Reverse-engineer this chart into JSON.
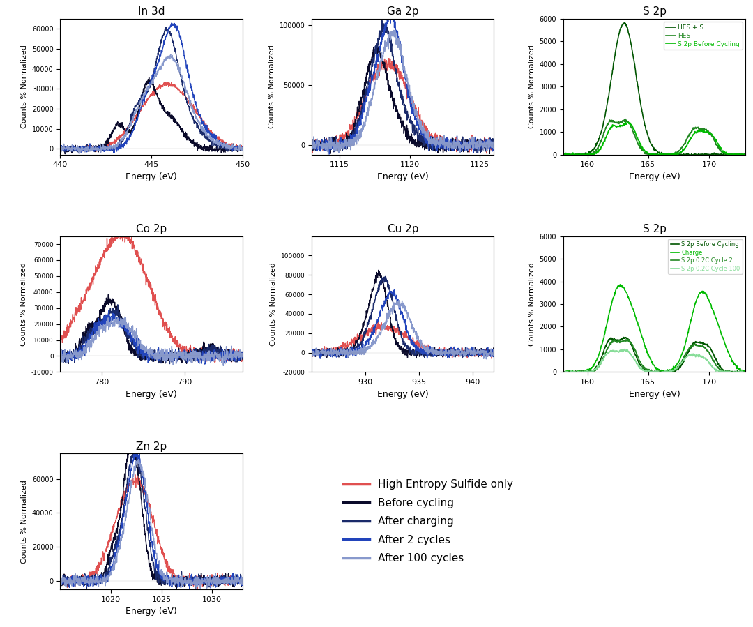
{
  "panels": {
    "In3d": {
      "title": "In 3d",
      "xlabel": "Energy (eV)",
      "ylabel": "Counts % Normalized",
      "xlim": [
        440,
        450
      ],
      "ylim": [
        -3000,
        65000
      ],
      "yticks": [
        0,
        10000,
        20000,
        30000,
        40000,
        50000,
        60000
      ]
    },
    "Ga2p": {
      "title": "Ga 2p",
      "xlabel": "Energy (eV)",
      "ylabel": "Counts % Normalized",
      "xlim": [
        1113,
        1126
      ],
      "ylim": [
        -8000,
        105000
      ],
      "yticks": [
        0,
        50000,
        100000
      ]
    },
    "S2p_top": {
      "title": "S 2p",
      "xlabel": "Energy (eV)",
      "ylabel": "Counts % Normalized",
      "xlim": [
        158,
        173
      ],
      "ylim": [
        0,
        6000
      ],
      "yticks": [
        0,
        1000,
        2000,
        3000,
        4000,
        5000,
        6000
      ]
    },
    "Co2p": {
      "title": "Co 2p",
      "xlabel": "Energy (eV)",
      "ylabel": "Counts % Normalized",
      "xlim": [
        775,
        797
      ],
      "ylim": [
        -10000,
        75000
      ],
      "yticks": [
        -10000,
        0,
        10000,
        20000,
        30000,
        40000,
        50000,
        60000,
        70000
      ]
    },
    "Cu2p": {
      "title": "Cu 2p",
      "xlabel": "Energy (eV)",
      "ylabel": "Counts % Normalized",
      "xlim": [
        925,
        942
      ],
      "ylim": [
        -20000,
        120000
      ],
      "yticks": [
        -20000,
        0,
        20000,
        40000,
        60000,
        80000,
        100000
      ]
    },
    "S2p_bot": {
      "title": "S 2p",
      "xlabel": "Energy (eV)",
      "ylabel": "Counts % Normalized",
      "xlim": [
        158,
        173
      ],
      "ylim": [
        0,
        6000
      ],
      "yticks": [
        0,
        1000,
        2000,
        3000,
        4000,
        5000,
        6000
      ]
    },
    "Zn2p": {
      "title": "Zn 2p",
      "xlabel": "Energy (eV)",
      "ylabel": "Counts % Normalized",
      "xlim": [
        1015,
        1033
      ],
      "ylim": [
        -5000,
        75000
      ],
      "yticks": [
        0,
        20000,
        40000,
        60000
      ]
    }
  },
  "colors": {
    "red": "#e05050",
    "darknavy": "#0a0a2a",
    "navy": "#1a2a6a",
    "blue": "#2244bb",
    "lightblue": "#8899cc",
    "dark_green": "#005500",
    "mid_green": "#228822",
    "bright_green": "#00bb00",
    "light_green": "#88dd99"
  },
  "legend_main": {
    "entries": [
      {
        "label": "High Entropy Sulfide only",
        "color": "#e05050"
      },
      {
        "label": "Before cycling",
        "color": "#0a0a2a"
      },
      {
        "label": "After charging",
        "color": "#1a2a6a"
      },
      {
        "label": "After 2 cycles",
        "color": "#2244bb"
      },
      {
        "label": "After 100 cycles",
        "color": "#8899cc"
      }
    ]
  }
}
